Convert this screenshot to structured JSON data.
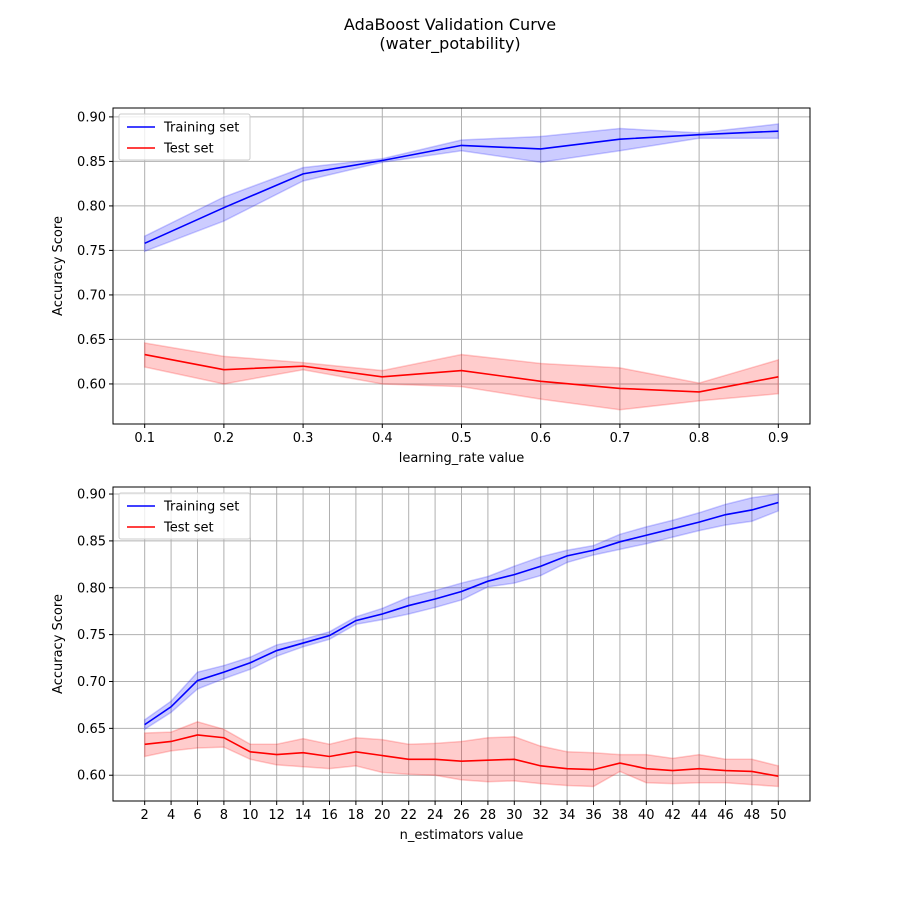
{
  "figure": {
    "title_line1": "AdaBoost Validation Curve",
    "title_line2": "(water_potability)"
  },
  "colors": {
    "training": "#0000ff",
    "test": "#ff0000",
    "grid": "#b0b0b0"
  },
  "chart_data": [
    {
      "type": "line",
      "xlabel": "learning_rate value",
      "ylabel": "Accuracy Score",
      "xlim": [
        0.06,
        0.94
      ],
      "ylim": [
        0.555,
        0.91
      ],
      "xticks": [
        0.1,
        0.2,
        0.3,
        0.4,
        0.5,
        0.6,
        0.7,
        0.8,
        0.9
      ],
      "yticks": [
        0.6,
        0.65,
        0.7,
        0.75,
        0.8,
        0.85,
        0.9
      ],
      "grid": true,
      "legend": "upper-left",
      "x": [
        0.1,
        0.2,
        0.3,
        0.4,
        0.5,
        0.6,
        0.7,
        0.8,
        0.9
      ],
      "series": [
        {
          "name": "Training set",
          "values": [
            0.758,
            0.798,
            0.836,
            0.851,
            0.868,
            0.864,
            0.875,
            0.88,
            0.884
          ],
          "upper": [
            0.766,
            0.81,
            0.843,
            0.853,
            0.874,
            0.878,
            0.887,
            0.882,
            0.892
          ],
          "lower": [
            0.749,
            0.783,
            0.828,
            0.849,
            0.862,
            0.849,
            0.862,
            0.876,
            0.876
          ]
        },
        {
          "name": "Test set",
          "values": [
            0.633,
            0.616,
            0.62,
            0.608,
            0.615,
            0.603,
            0.595,
            0.591,
            0.608
          ],
          "upper": [
            0.646,
            0.631,
            0.624,
            0.615,
            0.633,
            0.623,
            0.618,
            0.601,
            0.627
          ],
          "lower": [
            0.619,
            0.6,
            0.616,
            0.6,
            0.597,
            0.583,
            0.571,
            0.581,
            0.589
          ]
        }
      ]
    },
    {
      "type": "line",
      "xlabel": "n_estimators value",
      "ylabel": "Accuracy Score",
      "xlim": [
        -0.4,
        52.4
      ],
      "ylim": [
        0.5725,
        0.9075
      ],
      "xticks": [
        2,
        4,
        6,
        8,
        10,
        12,
        14,
        16,
        18,
        20,
        22,
        24,
        26,
        28,
        30,
        32,
        34,
        36,
        38,
        40,
        42,
        44,
        46,
        48,
        50
      ],
      "yticks": [
        0.6,
        0.65,
        0.7,
        0.75,
        0.8,
        0.85,
        0.9
      ],
      "grid": true,
      "legend": "upper-left",
      "x": [
        2,
        4,
        6,
        8,
        10,
        12,
        14,
        16,
        18,
        20,
        22,
        24,
        26,
        28,
        30,
        32,
        34,
        36,
        38,
        40,
        42,
        44,
        46,
        48,
        50
      ],
      "series": [
        {
          "name": "Training set",
          "values": [
            0.654,
            0.673,
            0.701,
            0.71,
            0.72,
            0.733,
            0.741,
            0.749,
            0.765,
            0.772,
            0.781,
            0.788,
            0.796,
            0.807,
            0.814,
            0.823,
            0.834,
            0.84,
            0.849,
            0.856,
            0.863,
            0.87,
            0.878,
            0.883,
            0.891
          ],
          "upper": [
            0.659,
            0.679,
            0.71,
            0.717,
            0.726,
            0.739,
            0.745,
            0.753,
            0.769,
            0.778,
            0.79,
            0.797,
            0.805,
            0.812,
            0.823,
            0.833,
            0.84,
            0.845,
            0.857,
            0.865,
            0.872,
            0.88,
            0.889,
            0.896,
            0.9
          ],
          "lower": [
            0.649,
            0.667,
            0.692,
            0.703,
            0.713,
            0.727,
            0.737,
            0.745,
            0.761,
            0.766,
            0.772,
            0.779,
            0.787,
            0.801,
            0.805,
            0.813,
            0.827,
            0.835,
            0.841,
            0.847,
            0.854,
            0.861,
            0.867,
            0.871,
            0.882
          ]
        },
        {
          "name": "Test set",
          "values": [
            0.633,
            0.636,
            0.643,
            0.64,
            0.625,
            0.622,
            0.624,
            0.62,
            0.625,
            0.621,
            0.617,
            0.617,
            0.615,
            0.616,
            0.617,
            0.61,
            0.607,
            0.606,
            0.613,
            0.607,
            0.605,
            0.607,
            0.605,
            0.604,
            0.599
          ],
          "upper": [
            0.645,
            0.646,
            0.657,
            0.649,
            0.633,
            0.633,
            0.639,
            0.633,
            0.64,
            0.638,
            0.633,
            0.634,
            0.636,
            0.64,
            0.641,
            0.631,
            0.625,
            0.624,
            0.622,
            0.622,
            0.618,
            0.622,
            0.617,
            0.617,
            0.61
          ],
          "lower": [
            0.62,
            0.626,
            0.629,
            0.63,
            0.617,
            0.611,
            0.609,
            0.607,
            0.61,
            0.603,
            0.601,
            0.6,
            0.595,
            0.593,
            0.594,
            0.591,
            0.589,
            0.588,
            0.604,
            0.592,
            0.591,
            0.592,
            0.592,
            0.59,
            0.588
          ]
        }
      ]
    }
  ]
}
